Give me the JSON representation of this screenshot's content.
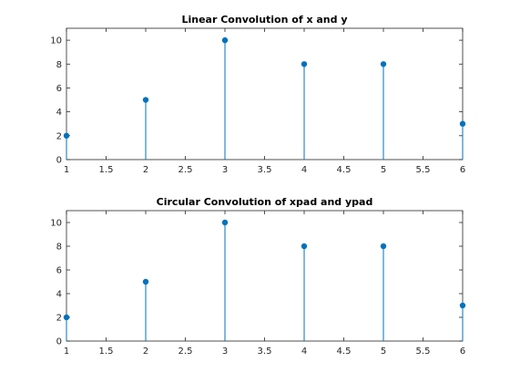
{
  "chart_data": [
    {
      "type": "stem",
      "title": "Linear Convolution of x and y",
      "xlabel": "",
      "ylabel": "",
      "xlim": [
        1,
        6
      ],
      "ylim": [
        0,
        11
      ],
      "xticks": [
        "1",
        "1.5",
        "2",
        "2.5",
        "3",
        "3.5",
        "4",
        "4.5",
        "5",
        "5.5",
        "6"
      ],
      "yticks": [
        "0",
        "2",
        "4",
        "6",
        "8",
        "10"
      ],
      "grid": false,
      "series": [
        {
          "x": [
            1,
            2,
            3,
            4,
            5,
            6
          ],
          "values": [
            2,
            5,
            10,
            8,
            8,
            3
          ]
        }
      ]
    },
    {
      "type": "stem",
      "title": "Circular Convolution of xpad and ypad",
      "xlabel": "",
      "ylabel": "",
      "xlim": [
        1,
        6
      ],
      "ylim": [
        0,
        11
      ],
      "xticks": [
        "1",
        "1.5",
        "2",
        "2.5",
        "3",
        "3.5",
        "4",
        "4.5",
        "5",
        "5.5",
        "6"
      ],
      "yticks": [
        "0",
        "2",
        "4",
        "6",
        "8",
        "10"
      ],
      "grid": false,
      "series": [
        {
          "x": [
            1,
            2,
            3,
            4,
            5,
            6
          ],
          "values": [
            2,
            5,
            10,
            8,
            8,
            3
          ]
        }
      ]
    }
  ],
  "colors": {
    "stem": "#0072bd",
    "axis": "#262626"
  }
}
